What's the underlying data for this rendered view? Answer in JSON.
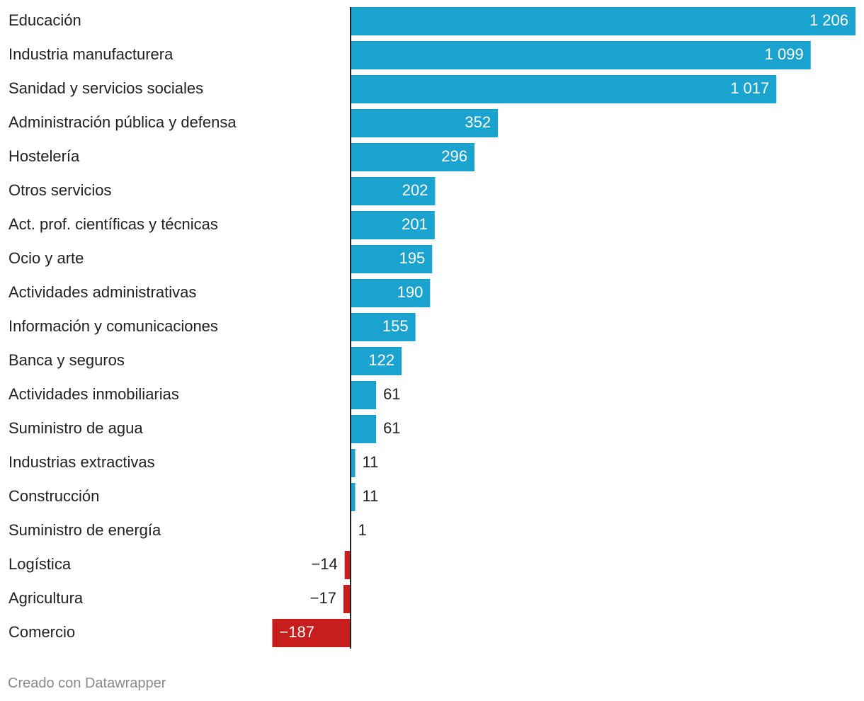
{
  "chart_data": {
    "type": "bar",
    "orientation": "horizontal",
    "categories": [
      "Educación",
      "Industria manufacturera",
      "Sanidad y servicios sociales",
      "Administración pública y defensa",
      "Hostelería",
      "Otros servicios",
      "Act. prof. científicas y técnicas",
      "Ocio y arte",
      "Actividades administrativas",
      "Información y comunicaciones",
      "Banca y seguros",
      "Actividades inmobiliarias",
      "Suministro de agua",
      "Industrias extractivas",
      "Construcción",
      "Suministro de energía",
      "Logística",
      "Agricultura",
      "Comercio"
    ],
    "values": [
      1206,
      1099,
      1017,
      352,
      296,
      202,
      201,
      195,
      190,
      155,
      122,
      61,
      61,
      11,
      11,
      1,
      -14,
      -17,
      -187
    ],
    "value_labels": [
      "1 206",
      "1 099",
      "1 017",
      "352",
      "296",
      "202",
      "201",
      "195",
      "190",
      "155",
      "122",
      "61",
      "61",
      "11",
      "11",
      "1",
      "−14",
      "−17",
      "−187"
    ],
    "xlim": [
      -187,
      1206
    ],
    "grid": false,
    "colors": {
      "positive": "#1ba3cf",
      "negative": "#c71e1d",
      "axis": "#222222",
      "label_inside": "#ffffff",
      "label_outside": "#222222"
    }
  },
  "footer": {
    "credit": "Creado con Datawrapper"
  }
}
